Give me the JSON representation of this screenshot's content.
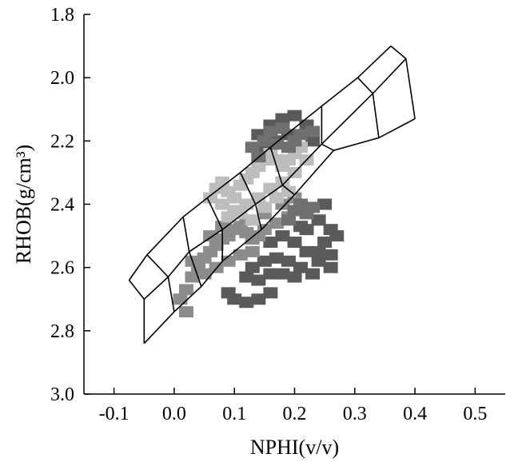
{
  "chart_data": {
    "type": "scatter",
    "title": "",
    "xlabel": "NPHI(v/v)",
    "ylabel": "RHOB(g/cm³)",
    "xlim": [
      -0.15,
      0.55
    ],
    "ylim": [
      3.0,
      1.8
    ],
    "x_ticks": [
      -0.1,
      0.0,
      0.1,
      0.2,
      0.3,
      0.4,
      0.5
    ],
    "x_tick_labels": [
      "-0.1",
      "0.0",
      "0.1",
      "0.2",
      "0.3",
      "0.4",
      "0.5"
    ],
    "y_ticks": [
      1.8,
      2.0,
      2.2,
      2.4,
      2.6,
      2.8,
      3.0
    ],
    "y_tick_labels": [
      "1.8",
      "2.0",
      "2.2",
      "2.4",
      "2.6",
      "2.8",
      "3.0"
    ],
    "grid": false,
    "series_colors": [
      "#5a5a5a",
      "#8c8c8c",
      "#bdbdbd",
      "#707070"
    ],
    "series": [
      {
        "color": "#5a5a5a",
        "points": [
          [
            0.14,
            2.18
          ],
          [
            0.16,
            2.15
          ],
          [
            0.18,
            2.13
          ],
          [
            0.2,
            2.12
          ],
          [
            0.22,
            2.15
          ],
          [
            0.15,
            2.22
          ],
          [
            0.19,
            2.18
          ],
          [
            0.23,
            2.2
          ],
          [
            0.25,
            2.4
          ],
          [
            0.24,
            2.45
          ],
          [
            0.26,
            2.48
          ],
          [
            0.25,
            2.52
          ],
          [
            0.27,
            2.5
          ],
          [
            0.24,
            2.58
          ],
          [
            0.26,
            2.6
          ],
          [
            0.23,
            2.62
          ],
          [
            0.21,
            2.6
          ],
          [
            0.19,
            2.58
          ],
          [
            0.17,
            2.57
          ],
          [
            0.15,
            2.58
          ],
          [
            0.13,
            2.6
          ],
          [
            0.12,
            2.63
          ],
          [
            0.14,
            2.64
          ],
          [
            0.16,
            2.62
          ],
          [
            0.18,
            2.62
          ],
          [
            0.2,
            2.63
          ],
          [
            0.22,
            2.55
          ],
          [
            0.2,
            2.52
          ],
          [
            0.18,
            2.5
          ],
          [
            0.16,
            2.52
          ],
          [
            0.1,
            2.7
          ],
          [
            0.12,
            2.71
          ],
          [
            0.14,
            2.7
          ],
          [
            0.09,
            2.68
          ],
          [
            0.16,
            2.68
          ],
          [
            0.22,
            2.48
          ],
          [
            0.24,
            2.55
          ],
          [
            0.21,
            2.47
          ],
          [
            0.26,
            2.56
          ],
          [
            0.17,
            2.2
          ]
        ]
      },
      {
        "color": "#8c8c8c",
        "points": [
          [
            0.01,
            2.7
          ],
          [
            0.02,
            2.67
          ],
          [
            0.03,
            2.63
          ],
          [
            0.04,
            2.6
          ],
          [
            0.05,
            2.57
          ],
          [
            0.06,
            2.55
          ],
          [
            0.07,
            2.53
          ],
          [
            0.08,
            2.51
          ],
          [
            0.09,
            2.5
          ],
          [
            0.1,
            2.48
          ],
          [
            0.11,
            2.47
          ],
          [
            0.12,
            2.49
          ],
          [
            0.13,
            2.51
          ],
          [
            0.14,
            2.5
          ],
          [
            0.15,
            2.48
          ],
          [
            0.17,
            2.46
          ],
          [
            0.19,
            2.44
          ],
          [
            0.05,
            2.62
          ],
          [
            0.07,
            2.6
          ],
          [
            0.09,
            2.58
          ],
          [
            0.11,
            2.56
          ],
          [
            0.13,
            2.55
          ],
          [
            0.03,
            2.58
          ],
          [
            0.06,
            2.5
          ],
          [
            0.08,
            2.47
          ],
          [
            0.12,
            2.45
          ],
          [
            0.15,
            2.43
          ],
          [
            0.18,
            2.4
          ],
          [
            0.2,
            2.38
          ],
          [
            0.02,
            2.74
          ]
        ]
      },
      {
        "color": "#bdbdbd",
        "points": [
          [
            0.06,
            2.38
          ],
          [
            0.07,
            2.35
          ],
          [
            0.08,
            2.33
          ],
          [
            0.09,
            2.36
          ],
          [
            0.1,
            2.38
          ],
          [
            0.11,
            2.34
          ],
          [
            0.12,
            2.32
          ],
          [
            0.13,
            2.3
          ],
          [
            0.14,
            2.28
          ],
          [
            0.15,
            2.26
          ],
          [
            0.16,
            2.24
          ],
          [
            0.17,
            2.26
          ],
          [
            0.18,
            2.28
          ],
          [
            0.19,
            2.26
          ],
          [
            0.2,
            2.24
          ],
          [
            0.21,
            2.22
          ],
          [
            0.22,
            2.26
          ],
          [
            0.08,
            2.4
          ],
          [
            0.1,
            2.42
          ],
          [
            0.12,
            2.4
          ],
          [
            0.14,
            2.38
          ],
          [
            0.16,
            2.35
          ],
          [
            0.18,
            2.33
          ],
          [
            0.2,
            2.3
          ],
          [
            0.09,
            2.44
          ],
          [
            0.11,
            2.43
          ],
          [
            0.13,
            2.45
          ],
          [
            0.15,
            2.41
          ],
          [
            0.17,
            2.38
          ],
          [
            0.19,
            2.36
          ]
        ]
      },
      {
        "color": "#707070",
        "points": [
          [
            0.15,
            2.2
          ],
          [
            0.17,
            2.21
          ],
          [
            0.19,
            2.22
          ],
          [
            0.21,
            2.18
          ],
          [
            0.23,
            2.17
          ],
          [
            0.13,
            2.22
          ],
          [
            0.16,
            2.17
          ],
          [
            0.18,
            2.16
          ],
          [
            0.2,
            2.2
          ],
          [
            0.14,
            2.25
          ],
          [
            0.2,
            2.42
          ],
          [
            0.21,
            2.4
          ],
          [
            0.22,
            2.43
          ],
          [
            0.23,
            2.41
          ],
          [
            0.19,
            2.45
          ]
        ]
      }
    ],
    "overlay": {
      "type": "grid-chart",
      "color": "#000000",
      "rows": [
        [
          [
            -0.075,
            2.64
          ],
          [
            -0.045,
            2.56
          ],
          [
            0.015,
            2.44
          ],
          [
            0.055,
            2.38
          ],
          [
            0.11,
            2.3
          ],
          [
            0.16,
            2.22
          ],
          [
            0.245,
            2.09
          ],
          [
            0.305,
            2.0
          ],
          [
            0.36,
            1.9
          ]
        ],
        [
          [
            -0.05,
            2.7
          ],
          [
            -0.01,
            2.63
          ],
          [
            0.025,
            2.55
          ],
          [
            0.08,
            2.48
          ],
          [
            0.135,
            2.4
          ],
          [
            0.18,
            2.34
          ],
          [
            0.245,
            2.21
          ],
          [
            0.33,
            2.05
          ],
          [
            0.385,
            1.94
          ]
        ],
        [
          [
            -0.05,
            2.84
          ],
          [
            0.0,
            2.74
          ],
          [
            0.045,
            2.66
          ],
          [
            0.08,
            2.58
          ],
          [
            0.145,
            2.48
          ],
          [
            0.2,
            2.37
          ],
          [
            0.265,
            2.23
          ],
          [
            0.34,
            2.19
          ],
          [
            0.4,
            2.13
          ]
        ]
      ],
      "mid_curve": [
        [
          [
            -0.045,
            2.56
          ],
          [
            -0.01,
            2.63
          ],
          [
            0.0,
            2.74
          ]
        ],
        [
          [
            0.015,
            2.44
          ],
          [
            0.025,
            2.55
          ],
          [
            0.045,
            2.66
          ]
        ],
        [
          [
            0.055,
            2.38
          ],
          [
            0.08,
            2.48
          ],
          [
            0.08,
            2.58
          ]
        ],
        [
          [
            0.11,
            2.3
          ],
          [
            0.135,
            2.4
          ],
          [
            0.145,
            2.48
          ]
        ],
        [
          [
            0.16,
            2.22
          ],
          [
            0.18,
            2.34
          ],
          [
            0.2,
            2.37
          ]
        ],
        [
          [
            0.245,
            2.09
          ],
          [
            0.245,
            2.21
          ],
          [
            0.265,
            2.23
          ]
        ],
        [
          [
            0.305,
            2.0
          ],
          [
            0.33,
            2.05
          ],
          [
            0.34,
            2.19
          ]
        ]
      ]
    }
  }
}
